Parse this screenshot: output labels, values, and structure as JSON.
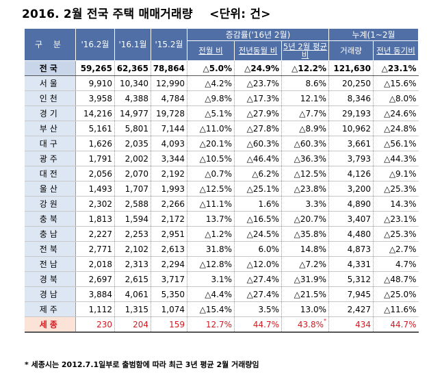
{
  "title": "2016. 2월 전국 주택 매매거래량    <단위: 건>",
  "header": {
    "region": "구 분",
    "cols": [
      "'16.2월",
      "'16.1월",
      "'15.2월"
    ],
    "group_change": "증감률('16년 2월)",
    "group_cumulative": "누계(1~2월",
    "sub_change": [
      "전월 비",
      "전년동월 비",
      "5년 2월 평균비"
    ],
    "sub_cumulative": [
      "거래량",
      "전년 동기비"
    ]
  },
  "rows": [
    {
      "region": "전국",
      "v1": "59,265",
      "v2": "62,365",
      "v3": "78,864",
      "mom": "△5.0%",
      "yoy": "△24.9%",
      "avg5": "△12.2%",
      "cum": "121,630",
      "cum_yoy": "△23.1%"
    },
    {
      "region": "서울",
      "v1": "9,910",
      "v2": "10,340",
      "v3": "12,990",
      "mom": "△4.2%",
      "yoy": "△23.7%",
      "avg5": "8.6%",
      "cum": "20,250",
      "cum_yoy": "△15.6%"
    },
    {
      "region": "인천",
      "v1": "3,958",
      "v2": "4,388",
      "v3": "4,784",
      "mom": "△9.8%",
      "yoy": "△17.3%",
      "avg5": "12.1%",
      "cum": "8,346",
      "cum_yoy": "△8.0%"
    },
    {
      "region": "경기",
      "v1": "14,216",
      "v2": "14,977",
      "v3": "19,728",
      "mom": "△5.1%",
      "yoy": "△27.9%",
      "avg5": "△7.7%",
      "cum": "29,193",
      "cum_yoy": "△24.6%"
    },
    {
      "region": "부산",
      "v1": "5,161",
      "v2": "5,801",
      "v3": "7,144",
      "mom": "△11.0%",
      "yoy": "△27.8%",
      "avg5": "△8.9%",
      "cum": "10,962",
      "cum_yoy": "△24.8%"
    },
    {
      "region": "대구",
      "v1": "1,626",
      "v2": "2,035",
      "v3": "4,093",
      "mom": "△20.1%",
      "yoy": "△60.3%",
      "avg5": "△60.3%",
      "cum": "3,661",
      "cum_yoy": "△56.1%"
    },
    {
      "region": "광주",
      "v1": "1,791",
      "v2": "2,002",
      "v3": "3,344",
      "mom": "△10.5%",
      "yoy": "△46.4%",
      "avg5": "△36.3%",
      "cum": "3,793",
      "cum_yoy": "△44.3%"
    },
    {
      "region": "대전",
      "v1": "2,056",
      "v2": "2,070",
      "v3": "2,192",
      "mom": "△0.7%",
      "yoy": "△6.2%",
      "avg5": "△12.5%",
      "cum": "4,126",
      "cum_yoy": "△9.1%"
    },
    {
      "region": "울산",
      "v1": "1,493",
      "v2": "1,707",
      "v3": "1,993",
      "mom": "△12.5%",
      "yoy": "△25.1%",
      "avg5": "△23.8%",
      "cum": "3,200",
      "cum_yoy": "△25.3%"
    },
    {
      "region": "강원",
      "v1": "2,302",
      "v2": "2,588",
      "v3": "2,266",
      "mom": "△11.1%",
      "yoy": "1.6%",
      "avg5": "3.3%",
      "cum": "4,890",
      "cum_yoy": "14.3%"
    },
    {
      "region": "충북",
      "v1": "1,813",
      "v2": "1,594",
      "v3": "2,172",
      "mom": "13.7%",
      "yoy": "△16.5%",
      "avg5": "△20.7%",
      "cum": "3,407",
      "cum_yoy": "△23.1%"
    },
    {
      "region": "충남",
      "v1": "2,227",
      "v2": "2,253",
      "v3": "2,951",
      "mom": "△1.2%",
      "yoy": "△24.5%",
      "avg5": "△35.8%",
      "cum": "4,480",
      "cum_yoy": "△25.3%"
    },
    {
      "region": "전북",
      "v1": "2,771",
      "v2": "2,102",
      "v3": "2,613",
      "mom": "31.8%",
      "yoy": "6.0%",
      "avg5": "14.8%",
      "cum": "4,873",
      "cum_yoy": "△2.7%"
    },
    {
      "region": "전남",
      "v1": "2,018",
      "v2": "2,313",
      "v3": "2,294",
      "mom": "△12.8%",
      "yoy": "△12.0%",
      "avg5": "△7.2%",
      "cum": "4,331",
      "cum_yoy": "4.7%"
    },
    {
      "region": "경북",
      "v1": "2,697",
      "v2": "2,615",
      "v3": "3,717",
      "mom": "3.1%",
      "yoy": "△27.4%",
      "avg5": "△31.9%",
      "cum": "5,312",
      "cum_yoy": "△48.7%"
    },
    {
      "region": "경남",
      "v1": "3,884",
      "v2": "4,061",
      "v3": "5,350",
      "mom": "△4.4%",
      "yoy": "△27.4%",
      "avg5": "△21.5%",
      "cum": "7,945",
      "cum_yoy": "△25.0%"
    },
    {
      "region": "제주",
      "v1": "1,112",
      "v2": "1,315",
      "v3": "1,074",
      "mom": "△15.4%",
      "yoy": "3.5%",
      "avg5": "13.0%",
      "cum": "2,427",
      "cum_yoy": "△11.6%"
    },
    {
      "region": "세종",
      "v1": "230",
      "v2": "204",
      "v3": "159",
      "mom": "12.7%",
      "yoy": "44.7%",
      "avg5": "43.8%",
      "avg5_mark": "*",
      "cum": "434",
      "cum_yoy": "44.7%"
    }
  ],
  "footnote": "* 세종시는 2012.7.1일부로 출범함에 따라 최근 3년 평균 2월 거래량임",
  "colors": {
    "header_bg": "#4f6fa6",
    "label_bg": "#dde6f3",
    "sejong_text": "#d4181f",
    "sejong_label_bg": "#fbe3d8"
  }
}
